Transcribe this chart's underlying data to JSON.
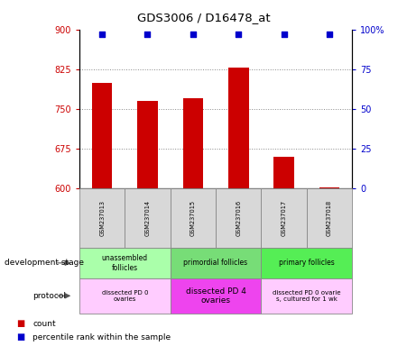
{
  "title": "GDS3006 / D16478_at",
  "samples": [
    "GSM237013",
    "GSM237014",
    "GSM237015",
    "GSM237016",
    "GSM237017",
    "GSM237018"
  ],
  "counts": [
    800,
    765,
    770,
    828,
    660,
    602
  ],
  "percentile_ranks": [
    97,
    97,
    97,
    97,
    97,
    97
  ],
  "ylim_left": [
    600,
    900
  ],
  "ylim_right": [
    0,
    100
  ],
  "yticks_left": [
    600,
    675,
    750,
    825,
    900
  ],
  "yticks_right": [
    0,
    25,
    50,
    75,
    100
  ],
  "bar_color": "#cc0000",
  "dot_color": "#0000cc",
  "bar_width": 0.45,
  "grid_color": "#888888",
  "tick_color_left": "#cc0000",
  "tick_color_right": "#0000cc",
  "dev_spans": [
    {
      "label": "unassembled\nfollicles",
      "start": 0,
      "end": 1,
      "color": "#aaffaa"
    },
    {
      "label": "primordial follicles",
      "start": 2,
      "end": 3,
      "color": "#77dd77"
    },
    {
      "label": "primary follicles",
      "start": 4,
      "end": 5,
      "color": "#55ee55"
    }
  ],
  "prot_spans": [
    {
      "label": "dissected PD 0\novaries",
      "start": 0,
      "end": 1,
      "color": "#ffccff"
    },
    {
      "label": "dissected PD 4\novaries",
      "start": 2,
      "end": 3,
      "color": "#ee44ee"
    },
    {
      "label": "dissected PD 0 ovarie\ns, cultured for 1 wk",
      "start": 4,
      "end": 5,
      "color": "#ffccff"
    }
  ]
}
